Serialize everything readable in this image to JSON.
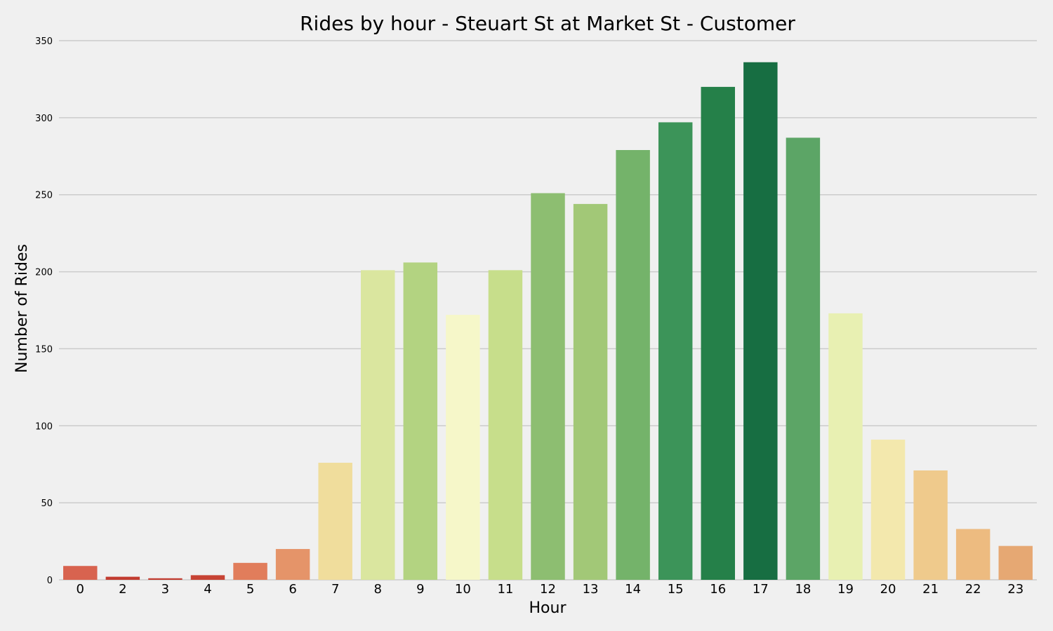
{
  "chart_data": {
    "type": "bar",
    "title": "Rides by hour - Steuart St at Market St - Customer",
    "xlabel": "Hour",
    "ylabel": "Number of Rides",
    "categories": [
      "0",
      "2",
      "3",
      "4",
      "5",
      "6",
      "7",
      "8",
      "9",
      "10",
      "11",
      "12",
      "13",
      "14",
      "15",
      "16",
      "17",
      "18",
      "19",
      "20",
      "21",
      "22",
      "23"
    ],
    "values": [
      9,
      2,
      1,
      3,
      11,
      20,
      76,
      201,
      206,
      172,
      201,
      251,
      244,
      279,
      297,
      320,
      336,
      287,
      173,
      91,
      71,
      33,
      22
    ],
    "colors": [
      "#d8634f",
      "#c23c30",
      "#c23c30",
      "#c74334",
      "#e17d5b",
      "#e59469",
      "#f0dd9c",
      "#dae69f",
      "#b3d381",
      "#f6f7c9",
      "#c7de8b",
      "#8dbe71",
      "#a2c877",
      "#74b36a",
      "#3c9459",
      "#258049",
      "#176e42",
      "#5ca566",
      "#e8f0b2",
      "#f3e8ad",
      "#efca8c",
      "#edbb80",
      "#e6a873"
    ],
    "ylim": [
      0,
      350
    ],
    "yticks": [
      0,
      50,
      100,
      150,
      200,
      250,
      300,
      350
    ],
    "grid": true,
    "legend": "none"
  }
}
